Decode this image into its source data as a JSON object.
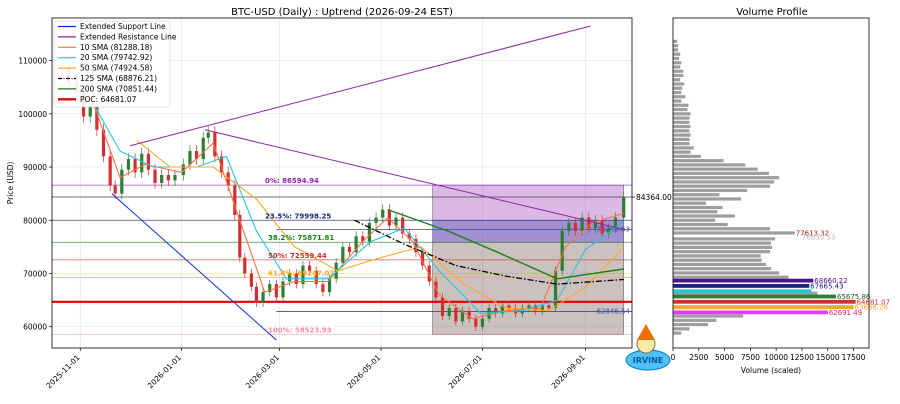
{
  "main_title": "BTC-USD (Daily) : Uptrend (2026-09-24 EST)",
  "volume_title": "Volume Profile",
  "colors": {
    "up_candle": "#2e7d32",
    "down_candle": "#d32f2f",
    "support": "#0033cc",
    "resistance": "#8e24aa",
    "sma10": "#ff7043",
    "sma20": "#26c6da",
    "sma50": "#ffa726",
    "sma125": "#000000",
    "sma200": "#1b7f1b",
    "poc": "#e00000"
  },
  "logo_text": "IRVINE",
  "chart_data": {
    "type": "line",
    "title": "BTC-USD (Daily) : Uptrend (2026-09-24 EST)",
    "xlabel": "",
    "ylabel": "Price (USD)",
    "xlim": [
      "2025-10-15",
      "2026-09-29"
    ],
    "ylim": [
      56000,
      118000
    ],
    "x_ticks": [
      "2025-11-01",
      "2026-01-01",
      "2026-03-01",
      "2026-05-01",
      "2026-07-01",
      "2026-09-01"
    ],
    "y_ticks": [
      60000,
      70000,
      80000,
      90000,
      100000,
      110000
    ],
    "y_tick_labels": [
      "60000",
      "70000",
      "80000",
      "90000",
      "100000",
      "110000"
    ],
    "grid": true,
    "legend_position": "top-left",
    "legend": [
      {
        "label": "Extended Support Line",
        "key": "support",
        "style": "solid"
      },
      {
        "label": "Extended Resistance Line",
        "key": "resistance",
        "style": "solid"
      },
      {
        "label": "10 SMA (81288.18)",
        "key": "sma10",
        "style": "solid"
      },
      {
        "label": "20 SMA (79742.92)",
        "key": "sma20",
        "style": "solid"
      },
      {
        "label": "50 SMA (74924.58)",
        "key": "sma50",
        "style": "solid"
      },
      {
        "label": "125 SMA (68876.21)",
        "key": "sma125",
        "style": "dashdot"
      },
      {
        "label": "200 SMA (70851.44)",
        "key": "sma200",
        "style": "solid"
      },
      {
        "label": "POC: 64681.07",
        "key": "poc",
        "style": "thick"
      }
    ],
    "last_price": {
      "value": 84364.0,
      "label": "84364.00"
    },
    "close_series": [
      [
        "2025-10-20",
        108500
      ],
      [
        "2025-10-25",
        106000
      ],
      [
        "2025-10-30",
        104000
      ],
      [
        "2025-11-03",
        99500
      ],
      [
        "2025-11-07",
        101500
      ],
      [
        "2025-11-11",
        97000
      ],
      [
        "2025-11-15",
        92000
      ],
      [
        "2025-11-19",
        86500
      ],
      [
        "2025-11-22",
        85000
      ],
      [
        "2025-11-26",
        89500
      ],
      [
        "2025-11-30",
        91500
      ],
      [
        "2025-12-04",
        89000
      ],
      [
        "2025-12-08",
        92500
      ],
      [
        "2025-12-12",
        89500
      ],
      [
        "2025-12-16",
        87000
      ],
      [
        "2025-12-20",
        88500
      ],
      [
        "2025-12-24",
        87500
      ],
      [
        "2025-12-28",
        88500
      ],
      [
        "2026-01-02",
        90500
      ],
      [
        "2026-01-06",
        93000
      ],
      [
        "2026-01-10",
        91500
      ],
      [
        "2026-01-14",
        95500
      ],
      [
        "2026-01-17",
        96500
      ],
      [
        "2026-01-21",
        92000
      ],
      [
        "2026-01-25",
        89000
      ],
      [
        "2026-01-29",
        86500
      ],
      [
        "2026-02-02",
        81000
      ],
      [
        "2026-02-05",
        73000
      ],
      [
        "2026-02-08",
        70000
      ],
      [
        "2026-02-12",
        67500
      ],
      [
        "2026-02-15",
        64500
      ],
      [
        "2026-02-19",
        66500
      ],
      [
        "2026-02-23",
        68000
      ],
      [
        "2026-02-27",
        65500
      ],
      [
        "2026-03-03",
        68500
      ],
      [
        "2026-03-07",
        70000
      ],
      [
        "2026-03-11",
        68000
      ],
      [
        "2026-03-15",
        71500
      ],
      [
        "2026-03-19",
        70500
      ],
      [
        "2026-03-23",
        68000
      ],
      [
        "2026-03-27",
        66500
      ],
      [
        "2026-03-31",
        69000
      ],
      [
        "2026-04-04",
        72000
      ],
      [
        "2026-04-08",
        75000
      ],
      [
        "2026-04-12",
        74000
      ],
      [
        "2026-04-16",
        77000
      ],
      [
        "2026-04-20",
        76000
      ],
      [
        "2026-04-24",
        79500
      ],
      [
        "2026-04-28",
        80500
      ],
      [
        "2026-05-02",
        82000
      ],
      [
        "2026-05-06",
        79000
      ],
      [
        "2026-05-10",
        80500
      ],
      [
        "2026-05-14",
        77500
      ],
      [
        "2026-05-18",
        76500
      ],
      [
        "2026-05-22",
        74000
      ],
      [
        "2026-05-26",
        71500
      ],
      [
        "2026-05-30",
        68500
      ],
      [
        "2026-06-03",
        65500
      ],
      [
        "2026-06-07",
        62000
      ],
      [
        "2026-06-11",
        63500
      ],
      [
        "2026-06-15",
        61000
      ],
      [
        "2026-06-19",
        63000
      ],
      [
        "2026-06-23",
        61500
      ],
      [
        "2026-06-27",
        60000
      ],
      [
        "2026-07-01",
        61500
      ],
      [
        "2026-07-05",
        63500
      ],
      [
        "2026-07-09",
        62500
      ],
      [
        "2026-07-13",
        64000
      ],
      [
        "2026-07-17",
        63500
      ],
      [
        "2026-07-21",
        62500
      ],
      [
        "2026-07-25",
        63500
      ],
      [
        "2026-07-29",
        64000
      ],
      [
        "2026-08-02",
        63000
      ],
      [
        "2026-08-06",
        64000
      ],
      [
        "2026-08-10",
        63500
      ],
      [
        "2026-08-14",
        70500
      ],
      [
        "2026-08-18",
        78000
      ],
      [
        "2026-08-22",
        79500
      ],
      [
        "2026-08-26",
        78000
      ],
      [
        "2026-08-30",
        80500
      ],
      [
        "2026-09-03",
        78500
      ],
      [
        "2026-09-07",
        80000
      ],
      [
        "2026-09-11",
        77500
      ],
      [
        "2026-09-15",
        78500
      ],
      [
        "2026-09-19",
        80500
      ],
      [
        "2026-09-24",
        84364
      ]
    ],
    "series": [
      {
        "name": "10 SMA (81288.18)",
        "key": "sma10",
        "points": [
          [
            "2025-10-25",
            106000
          ],
          [
            "2025-11-10",
            101000
          ],
          [
            "2025-11-25",
            88000
          ],
          [
            "2025-12-10",
            90500
          ],
          [
            "2026-01-01",
            89000
          ],
          [
            "2026-01-20",
            94500
          ],
          [
            "2026-02-05",
            80000
          ],
          [
            "2026-02-20",
            66500
          ],
          [
            "2026-03-10",
            68500
          ],
          [
            "2026-03-30",
            68500
          ],
          [
            "2026-04-20",
            76000
          ],
          [
            "2026-05-05",
            80500
          ],
          [
            "2026-05-20",
            76000
          ],
          [
            "2026-06-05",
            66000
          ],
          [
            "2026-06-25",
            61500
          ],
          [
            "2026-07-15",
            63000
          ],
          [
            "2026-08-05",
            63500
          ],
          [
            "2026-08-20",
            75000
          ],
          [
            "2026-09-05",
            79500
          ],
          [
            "2026-09-24",
            81288
          ]
        ]
      },
      {
        "name": "20 SMA (79742.92)",
        "key": "sma20",
        "points": [
          [
            "2025-11-05",
            104000
          ],
          [
            "2025-11-25",
            93000
          ],
          [
            "2025-12-15",
            90000
          ],
          [
            "2026-01-10",
            90000
          ],
          [
            "2026-01-28",
            92000
          ],
          [
            "2026-02-15",
            78000
          ],
          [
            "2026-03-05",
            69000
          ],
          [
            "2026-03-30",
            69000
          ],
          [
            "2026-04-25",
            76000
          ],
          [
            "2026-05-15",
            78500
          ],
          [
            "2026-06-05",
            70500
          ],
          [
            "2026-06-30",
            62500
          ],
          [
            "2026-07-25",
            63000
          ],
          [
            "2026-08-15",
            65000
          ],
          [
            "2026-09-01",
            74500
          ],
          [
            "2026-09-24",
            79743
          ]
        ]
      },
      {
        "name": "50 SMA (74924.58)",
        "key": "sma50",
        "points": [
          [
            "2025-12-05",
            95000
          ],
          [
            "2025-12-25",
            90000
          ],
          [
            "2026-01-20",
            90000
          ],
          [
            "2026-02-15",
            84000
          ],
          [
            "2026-03-10",
            75000
          ],
          [
            "2026-04-05",
            70500
          ],
          [
            "2026-05-01",
            73000
          ],
          [
            "2026-05-25",
            75000
          ],
          [
            "2026-06-20",
            68000
          ],
          [
            "2026-07-15",
            63500
          ],
          [
            "2026-08-10",
            63000
          ],
          [
            "2026-09-01",
            67500
          ],
          [
            "2026-09-24",
            74925
          ]
        ]
      },
      {
        "name": "125 SMA (68876.21)",
        "key": "sma125",
        "points": [
          [
            "2026-04-15",
            80000
          ],
          [
            "2026-05-15",
            75500
          ],
          [
            "2026-06-15",
            71500
          ],
          [
            "2026-07-15",
            69500
          ],
          [
            "2026-08-15",
            68000
          ],
          [
            "2026-09-24",
            68876
          ]
        ]
      },
      {
        "name": "200 SMA (70851.44)",
        "key": "sma200",
        "points": [
          [
            "2026-05-05",
            82000
          ],
          [
            "2026-06-10",
            78000
          ],
          [
            "2026-07-10",
            74000
          ],
          [
            "2026-08-15",
            69000
          ],
          [
            "2026-09-24",
            70851
          ]
        ]
      }
    ],
    "trend_lines": [
      {
        "name": "Extended Support Line",
        "key": "support",
        "points": [
          [
            "2025-11-20",
            85000
          ],
          [
            "2026-02-27",
            57500
          ]
        ]
      },
      {
        "name": "Extended Resistance Line",
        "key": "resistance",
        "points": [
          [
            "2025-12-01",
            94000
          ],
          [
            "2026-09-04",
            116500
          ]
        ]
      },
      {
        "name": "",
        "key": "resistance",
        "points": [
          [
            "2026-01-15",
            97000
          ],
          [
            "2026-09-24",
            78282.63
          ]
        ]
      }
    ],
    "fibonacci": [
      {
        "label": "0%: 86594.94",
        "value": 86594.94,
        "color": "#8e24aa"
      },
      {
        "label": "23.5%: 79998.25",
        "value": 79998.25,
        "color": "#1a237e"
      },
      {
        "label": "38.2%: 75871.81",
        "value": 75871.81,
        "color": "#1b7f1b"
      },
      {
        "label": "50%: 72559.44",
        "value": 72559.44,
        "color": "#d32f2f"
      },
      {
        "label": "61.8%: 69247.07",
        "value": 69247.07,
        "color": "#ffa726"
      },
      {
        "label": "100%: 58523.93",
        "value": 58523.93,
        "color": "#f48fb1"
      }
    ],
    "fib_tick_labels": [
      "61"
    ],
    "shaded_zones": [
      {
        "from": "2026-06-01",
        "to": "2026-09-24",
        "ymin": 75871.81,
        "ymax": 86594.94,
        "color": "#8e24aa"
      },
      {
        "from": "2026-06-01",
        "to": "2026-09-24",
        "ymin": 58523.93,
        "ymax": 75871.81,
        "color": "#5d4037"
      }
    ],
    "level_lines": [
      {
        "label": "78282.63",
        "value": 78282.63,
        "color": "#3949ab"
      },
      {
        "label": "62846.54",
        "value": 62846.54,
        "color": "#3949ab"
      }
    ],
    "poc": {
      "label": "POC: 64681.07",
      "value": 64681.07
    },
    "volume_profile": {
      "type": "bar",
      "orientation": "horizontal",
      "xlabel": "Volume (scaled)",
      "xlim": [
        0,
        19000
      ],
      "x_ticks": [
        0,
        2500,
        5000,
        7500,
        10000,
        12500,
        15000,
        17500
      ],
      "x_tick_labels": [
        "0",
        "2500",
        "5000",
        "7500",
        "10000",
        "12500",
        "15000",
        "17500"
      ],
      "bins": [
        [
          58800,
          800
        ],
        [
          59600,
          1600
        ],
        [
          60400,
          3400
        ],
        [
          61200,
          4200
        ],
        [
          62000,
          6800
        ],
        [
          62691.49,
          15000
        ],
        [
          63600,
          17500
        ],
        [
          64681.07,
          17700
        ],
        [
          65675.86,
          15800
        ],
        [
          66300,
          14000
        ],
        [
          67665.43,
          13200
        ],
        [
          68660.22,
          13600
        ],
        [
          69300,
          11200
        ],
        [
          70100,
          10300
        ],
        [
          70900,
          9500
        ],
        [
          71700,
          9000
        ],
        [
          72500,
          8600
        ],
        [
          73300,
          8500
        ],
        [
          74100,
          9400
        ],
        [
          74900,
          9600
        ],
        [
          75700,
          9500
        ],
        [
          76500,
          9900
        ],
        [
          77613.32,
          11800
        ],
        [
          78400,
          9400
        ],
        [
          79200,
          5300
        ],
        [
          80000,
          4100
        ],
        [
          80800,
          6000
        ],
        [
          81600,
          4300
        ],
        [
          82400,
          4800
        ],
        [
          83200,
          3200
        ],
        [
          84000,
          6600
        ],
        [
          84800,
          4500
        ],
        [
          85600,
          7200
        ],
        [
          86400,
          9400
        ],
        [
          87200,
          9800
        ],
        [
          88000,
          10300
        ],
        [
          88800,
          9300
        ],
        [
          89600,
          8200
        ],
        [
          90400,
          7000
        ],
        [
          91200,
          4900
        ],
        [
          92000,
          2700
        ],
        [
          92800,
          1700
        ],
        [
          93600,
          2000
        ],
        [
          94400,
          1600
        ],
        [
          95200,
          1600
        ],
        [
          96000,
          1700
        ],
        [
          96800,
          1600
        ],
        [
          97600,
          1700
        ],
        [
          98400,
          1600
        ],
        [
          99200,
          1600
        ],
        [
          100000,
          1700
        ],
        [
          100800,
          1400
        ],
        [
          101600,
          1500
        ],
        [
          102400,
          800
        ],
        [
          103200,
          1200
        ],
        [
          104000,
          800
        ],
        [
          104800,
          900
        ],
        [
          105600,
          1100
        ],
        [
          106400,
          700
        ],
        [
          107200,
          1000
        ],
        [
          108000,
          1000
        ],
        [
          108800,
          700
        ],
        [
          109600,
          800
        ],
        [
          110400,
          600
        ],
        [
          111200,
          700
        ],
        [
          112000,
          500
        ],
        [
          112800,
          500
        ],
        [
          113600,
          400
        ]
      ],
      "labels": [
        {
          "label": "77613.32",
          "value": 77613.32,
          "volume": 11800,
          "color": "#b71c1c"
        },
        {
          "label": "76830.53",
          "value": 76830.53,
          "volume": 12400,
          "color": "#bbbbbb"
        },
        {
          "label": "68660.22",
          "value": 68660.22,
          "volume": 13600,
          "color": "#4a148c"
        },
        {
          "label": "67665.43",
          "value": 67665.43,
          "volume": 13200,
          "color": "#1a237e"
        },
        {
          "label": "65675.86",
          "value": 65675.86,
          "volume": 15800,
          "color": "#1b5e20"
        },
        {
          "label": "64681.07",
          "value": 64681.07,
          "volume": 17700,
          "color": "#d32f2f"
        },
        {
          "label": "63686.28",
          "value": 63686.28,
          "volume": 17500,
          "color": "#ffa726"
        },
        {
          "label": "62691.49",
          "value": 62691.49,
          "volume": 15000,
          "color": "#e91e63"
        }
      ],
      "highlight_bars": [
        [
          68660.22,
          13600,
          "#4a148c"
        ],
        [
          67665.43,
          13200,
          "#1a237e"
        ],
        [
          66670.64,
          13400,
          "#26c6da"
        ],
        [
          65675.86,
          15800,
          "#2e7d32"
        ],
        [
          64681.07,
          17700,
          "#d32f2f"
        ],
        [
          63686.28,
          17500,
          "#ffa726"
        ],
        [
          62691.49,
          15000,
          "#e040fb"
        ]
      ]
    }
  }
}
